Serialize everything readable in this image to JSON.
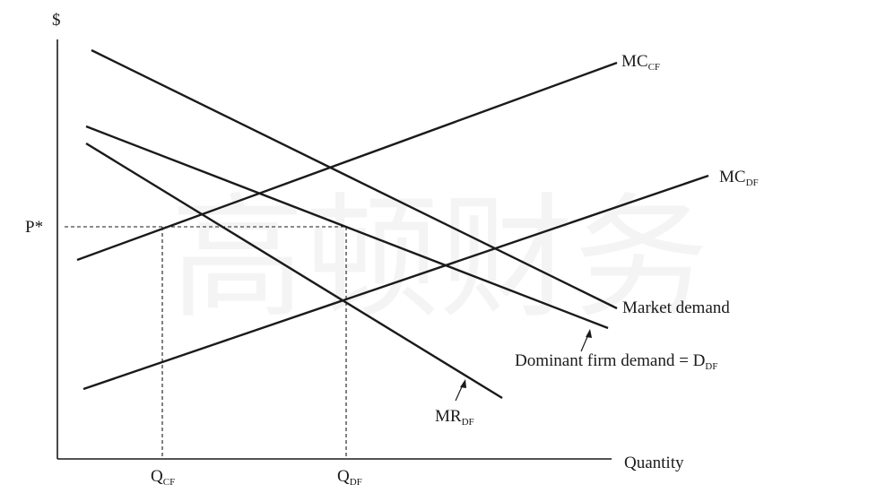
{
  "axes": {
    "y_label": "$",
    "x_label": "Quantity"
  },
  "price_label": "P*",
  "quantity_labels": {
    "q_cf": {
      "main": "Q",
      "sub": "CF"
    },
    "q_df": {
      "main": "Q",
      "sub": "DF"
    }
  },
  "curves": {
    "mc_cf": {
      "main": "MC",
      "sub": "CF"
    },
    "mc_df": {
      "main": "MC",
      "sub": "DF"
    },
    "market_demand": "Market demand",
    "dominant_demand": {
      "main": "Dominant firm demand = D",
      "sub": "DF"
    },
    "mr_df": {
      "main": "MR",
      "sub": "DF"
    }
  },
  "watermark": "高顿财务",
  "colors": {
    "ink": "#1a1a1a",
    "background": "#ffffff"
  }
}
